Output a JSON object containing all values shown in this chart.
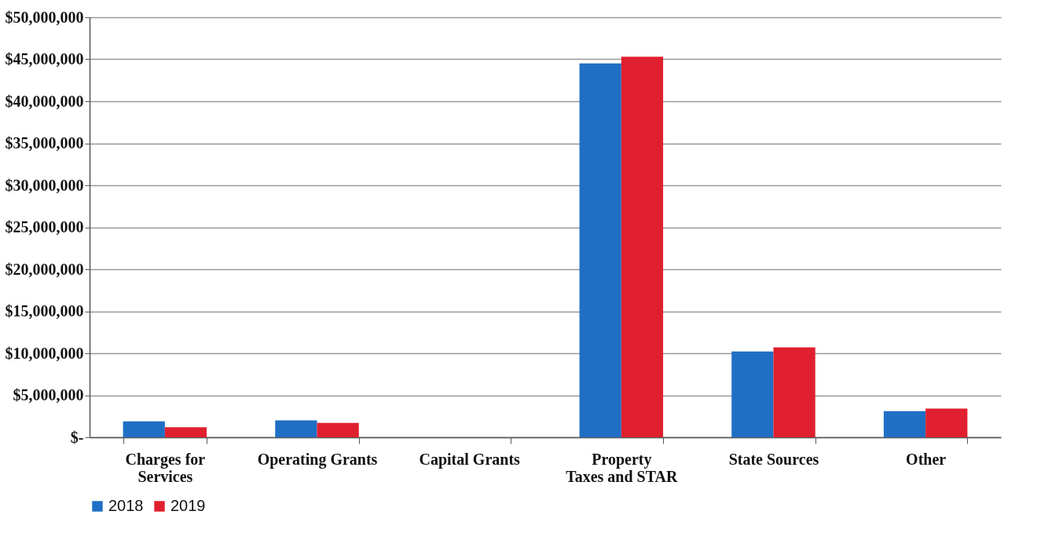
{
  "chart_data": {
    "type": "bar",
    "categories": [
      "Charges for Services",
      "Operating Grants",
      "Capital Grants",
      "Property Taxes and STAR",
      "State Sources",
      "Other"
    ],
    "series": [
      {
        "name": "2018",
        "color": "#1f6fc5",
        "values": [
          1900000,
          2000000,
          0,
          44500000,
          10200000,
          3100000
        ]
      },
      {
        "name": "2019",
        "color": "#e0202e",
        "values": [
          1200000,
          1700000,
          0,
          45300000,
          10700000,
          3400000
        ]
      }
    ],
    "ylim": [
      0,
      50000000
    ],
    "yticks": [
      {
        "value": 0,
        "label": "$-"
      },
      {
        "value": 5000000,
        "label": "$5,000,000"
      },
      {
        "value": 10000000,
        "label": "$10,000,000"
      },
      {
        "value": 15000000,
        "label": "$15,000,000"
      },
      {
        "value": 20000000,
        "label": "$20,000,000"
      },
      {
        "value": 25000000,
        "label": "$25,000,000"
      },
      {
        "value": 30000000,
        "label": "$30,000,000"
      },
      {
        "value": 35000000,
        "label": "$35,000,000"
      },
      {
        "value": 40000000,
        "label": "$40,000,000"
      },
      {
        "value": 45000000,
        "label": "$45,000,000"
      },
      {
        "value": 50000000,
        "label": "$50,000,000"
      }
    ],
    "grid": "y",
    "legend": "bottom"
  }
}
